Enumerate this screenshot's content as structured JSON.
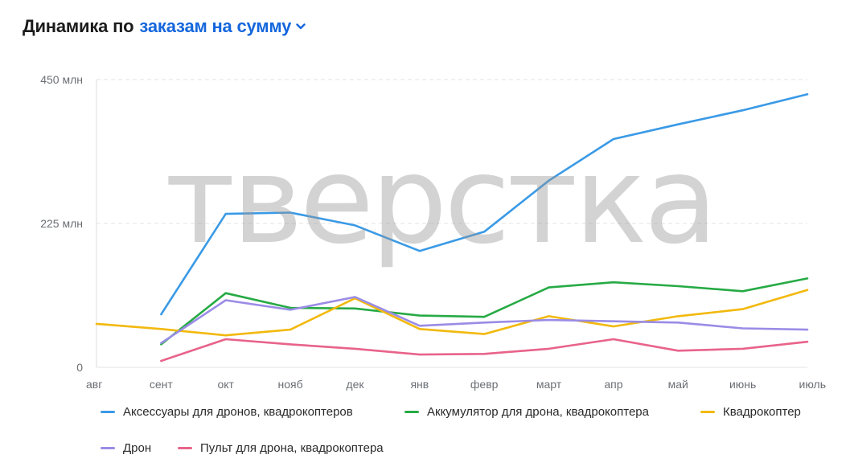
{
  "header": {
    "prefix": "Динамика по",
    "metric": "заказам на сумму",
    "dropdown_icon": "chevron-down-icon"
  },
  "watermark": "тверстка",
  "colors": {
    "accent": "#1466dc",
    "grid": "#e3e3e3",
    "axis": "#dcdcdc"
  },
  "chart_data": {
    "type": "line",
    "title": "",
    "xlabel": "",
    "ylabel": "",
    "categories": [
      "авг",
      "сент",
      "окт",
      "нояб",
      "дек",
      "янв",
      "февр",
      "март",
      "апр",
      "май",
      "июнь",
      "июль"
    ],
    "yticks": [
      {
        "value": 0,
        "label": "0"
      },
      {
        "value": 225,
        "label": "225 млн"
      },
      {
        "value": 450,
        "label": "450 млн"
      }
    ],
    "ylim": [
      0,
      450
    ],
    "grid": true,
    "legend_position": "bottom",
    "series": [
      {
        "name": "Аксессуары для дронов, квадрокоптеров",
        "color": "#3a9ae6",
        "values": [
          null,
          83,
          240,
          242,
          222,
          182,
          212,
          292,
          357,
          380,
          402,
          427
        ]
      },
      {
        "name": "Аккумулятор для дрона, квадрокоптера",
        "color": "#27aa45",
        "values": [
          null,
          36,
          116,
          93,
          92,
          81,
          79,
          125,
          133,
          127,
          119,
          139
        ]
      },
      {
        "name": "Квадрокоптер",
        "color": "#f2b90d",
        "values": [
          68,
          60,
          50,
          59,
          108,
          60,
          52,
          80,
          64,
          80,
          91,
          121
        ]
      },
      {
        "name": "Дрон",
        "color": "#9a8ce6",
        "values": [
          null,
          38,
          105,
          90,
          110,
          65,
          70,
          74,
          72,
          70,
          61,
          59
        ]
      },
      {
        "name": "Пульт для дрона, квадрокоптера",
        "color": "#e8638a",
        "values": [
          null,
          10,
          44,
          36,
          29,
          20,
          21,
          29,
          44,
          26,
          29,
          40
        ]
      }
    ]
  }
}
